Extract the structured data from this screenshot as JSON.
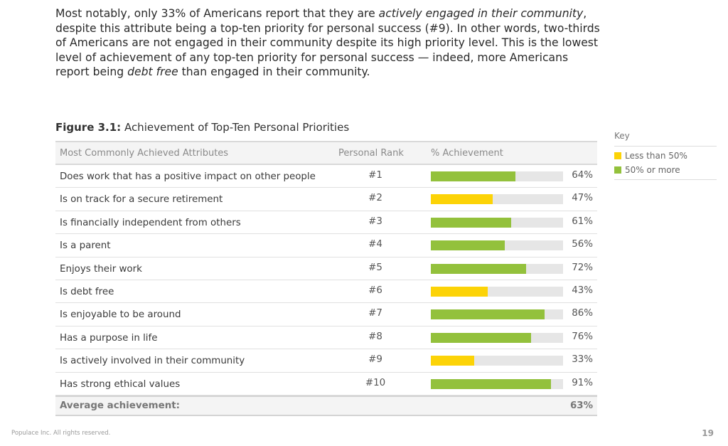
{
  "intro": {
    "p1": "Most notably, only 33% of Americans report that they are ",
    "em1": "actively engaged in their community",
    "p2": ", despite this attribute being a top-ten priority for personal success (#9). In other words, two-thirds of Americans are not engaged in their community despite its high priority level. This is the lowest level of achievement of any top-ten priority for personal success — indeed, more Americans report being ",
    "em2": "debt free",
    "p3": " than engaged in their community."
  },
  "figure": {
    "label": "Figure 3.1:",
    "title": " Achievement of Top-Ten Personal Priorities"
  },
  "key": {
    "title": "Key",
    "items": [
      {
        "label": "Less than 50%",
        "color": "#fcd307"
      },
      {
        "label": "50% or more",
        "color": "#93c13c"
      }
    ]
  },
  "chart_data": {
    "type": "table",
    "title": "Achievement of Top-Ten Personal Priorities",
    "columns": [
      "Most Commonly Achieved Attributes",
      "Personal Rank",
      "% Achievement"
    ],
    "threshold": 50,
    "colors": {
      "below": "#fcd307",
      "above": "#93c13c",
      "track": "#e6e6e6"
    },
    "rows": [
      {
        "attribute": "Does work that has a positive impact on other people",
        "rank": "#1",
        "value": 64,
        "label": "64%"
      },
      {
        "attribute": "Is on track for a secure retirement",
        "rank": "#2",
        "value": 47,
        "label": "47%"
      },
      {
        "attribute": "Is financially independent from others",
        "rank": "#3",
        "value": 61,
        "label": "61%"
      },
      {
        "attribute": "Is a parent",
        "rank": "#4",
        "value": 56,
        "label": "56%"
      },
      {
        "attribute": "Enjoys their work",
        "rank": "#5",
        "value": 72,
        "label": "72%"
      },
      {
        "attribute": "Is debt free",
        "rank": "#6",
        "value": 43,
        "label": "43%"
      },
      {
        "attribute": "Is enjoyable to be around",
        "rank": "#7",
        "value": 86,
        "label": "86%"
      },
      {
        "attribute": "Has a purpose in life",
        "rank": "#8",
        "value": 76,
        "label": "76%"
      },
      {
        "attribute": "Is actively involved in their community",
        "rank": "#9",
        "value": 33,
        "label": "33%"
      },
      {
        "attribute": "Has strong ethical values",
        "rank": "#10",
        "value": 91,
        "label": "91%"
      }
    ],
    "average": {
      "label": "Average achievement:",
      "value": "63%"
    }
  },
  "footer": {
    "copyright": "Populace Inc. All rights reserved.",
    "page": "19"
  }
}
